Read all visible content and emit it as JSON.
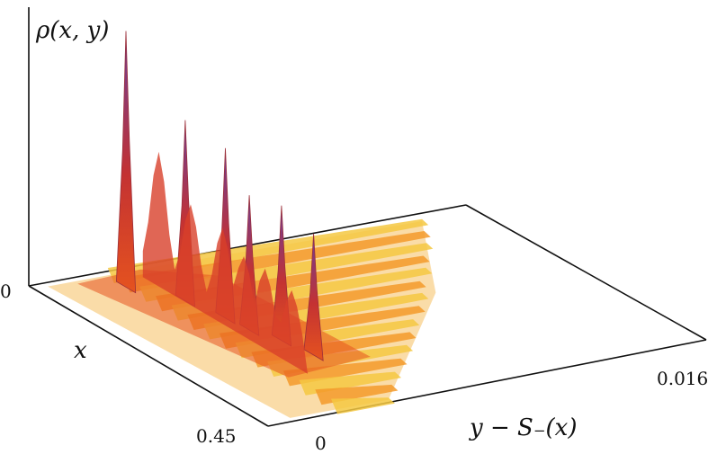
{
  "chart_data": {
    "type": "surface",
    "title": "",
    "zlabel": "ρ(x, y)",
    "xlabel": "x",
    "ylabel": "y − S₋(x)",
    "z_tick_labels": [
      "0"
    ],
    "x_tick_labels": [
      "0.45"
    ],
    "y_tick_labels": [
      "0",
      "0.016"
    ],
    "xlim": [
      0,
      0.45
    ],
    "ylim": [
      0,
      0.016
    ],
    "colormap": [
      "#f4c842",
      "#f39a2a",
      "#e5531f",
      "#c43232",
      "#7d3a8c"
    ],
    "peaks": [
      {
        "x": 0.08,
        "y": 0.002,
        "height": 1.0
      },
      {
        "x": 0.14,
        "y": 0.003,
        "height": 0.72
      },
      {
        "x": 0.2,
        "y": 0.0033,
        "height": 0.68
      },
      {
        "x": 0.24,
        "y": 0.0034,
        "height": 0.55
      },
      {
        "x": 0.28,
        "y": 0.0038,
        "height": 0.55
      },
      {
        "x": 0.33,
        "y": 0.004,
        "height": 0.5
      }
    ],
    "ridge_x": [
      0.02,
      0.05,
      0.08,
      0.11,
      0.14,
      0.17,
      0.2,
      0.23,
      0.26,
      0.29,
      0.32,
      0.35,
      0.38,
      0.41,
      0.44
    ],
    "ridge_y_end": [
      0.014,
      0.0135,
      0.013,
      0.0123,
      0.0118,
      0.011,
      0.0105,
      0.0098,
      0.009,
      0.0083,
      0.0076,
      0.0068,
      0.006,
      0.0053,
      0.0046
    ],
    "grid": false
  }
}
